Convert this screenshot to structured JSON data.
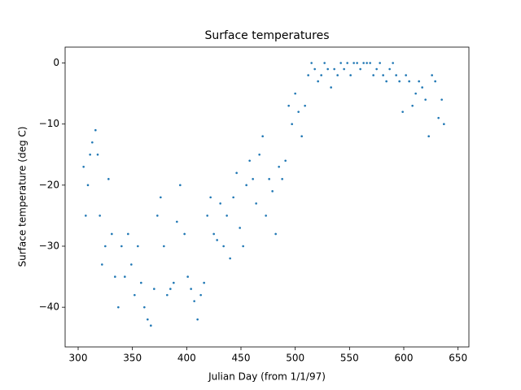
{
  "chart_data": {
    "type": "scatter",
    "title": "Surface temperatures",
    "x_label": "Julian Day (from 1/1/97)",
    "y_label": "Surface temperature (deg C)",
    "color": "#1f77b4",
    "x": [
      305,
      307,
      309,
      311,
      313,
      316,
      318,
      320,
      322,
      325,
      328,
      331,
      334,
      337,
      340,
      343,
      346,
      349,
      352,
      355,
      358,
      361,
      364,
      367,
      370,
      373,
      376,
      379,
      382,
      385,
      388,
      391,
      394,
      398,
      401,
      404,
      407,
      410,
      413,
      416,
      419,
      422,
      425,
      428,
      431,
      434,
      437,
      440,
      443,
      446,
      449,
      452,
      455,
      458,
      461,
      464,
      467,
      470,
      473,
      476,
      479,
      482,
      485,
      488,
      491,
      494,
      497,
      500,
      503,
      506,
      509,
      512,
      515,
      518,
      521,
      524,
      527,
      530,
      533,
      536,
      539,
      542,
      545,
      548,
      551,
      554,
      557,
      560,
      563,
      566,
      569,
      572,
      575,
      578,
      581,
      584,
      587,
      590,
      593,
      596,
      599,
      602,
      605,
      608,
      611,
      614,
      617,
      620,
      623,
      626,
      629,
      632,
      635,
      637
    ],
    "y": [
      -17,
      -25,
      -20,
      -15,
      -13,
      -11,
      -15,
      -25,
      -33,
      -30,
      -19,
      -28,
      -35,
      -40,
      -30,
      -35,
      -28,
      -33,
      -38,
      -30,
      -36,
      -40,
      -42,
      -43,
      -37,
      -25,
      -22,
      -30,
      -38,
      -37,
      -36,
      -26,
      -20,
      -28,
      -35,
      -37,
      -39,
      -42,
      -38,
      -36,
      -25,
      -22,
      -28,
      -29,
      -23,
      -30,
      -25,
      -32,
      -22,
      -18,
      -27,
      -30,
      -20,
      -16,
      -19,
      -23,
      -15,
      -12,
      -25,
      -19,
      -21,
      -28,
      -17,
      -19,
      -16,
      -7,
      -10,
      -5,
      -8,
      -12,
      -7,
      -2,
      0,
      -1,
      -3,
      -2,
      0,
      -1,
      -4,
      -1,
      -2,
      0,
      -1,
      0,
      -2,
      0,
      0,
      -1,
      0,
      0,
      0,
      -2,
      -1,
      0,
      -2,
      -3,
      -1,
      0,
      -2,
      -3,
      -8,
      -2,
      -3,
      -7,
      -5,
      -3,
      -4,
      -6,
      -12,
      -2,
      -3,
      -9,
      -6,
      -10
    ],
    "xlim": [
      288,
      660
    ],
    "ylim": [
      -46.5,
      2.6
    ],
    "xticks": [
      300,
      350,
      400,
      450,
      500,
      550,
      600,
      650
    ],
    "yticks": [
      {
        "value": -40,
        "label": "−40"
      },
      {
        "value": -30,
        "label": "−30"
      },
      {
        "value": -20,
        "label": "−20"
      },
      {
        "value": -10,
        "label": "−10"
      },
      0
    ]
  }
}
